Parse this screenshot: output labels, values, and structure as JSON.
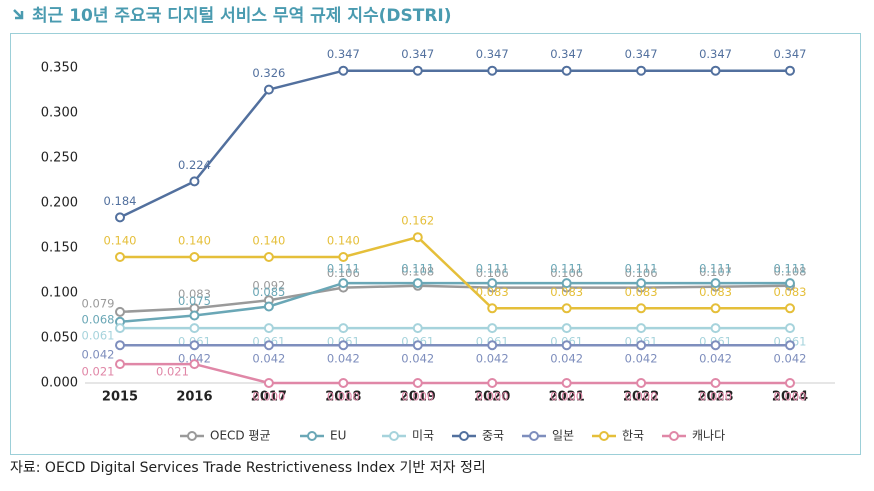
{
  "chart_data": {
    "type": "line",
    "title": "최근 10년 주요국 디지털 서비스 무역 규제 지수(DSTRI)",
    "source": "자료: OECD Digital Services Trade Restrictiveness Index 기반 저자 정리",
    "categories": [
      "2015",
      "2016",
      "2017",
      "2018",
      "2019",
      "2020",
      "2021",
      "2022",
      "2023",
      "2024"
    ],
    "ylim": [
      0,
      0.35
    ],
    "yticks": [
      {
        "value": 0,
        "label": "0.000"
      },
      {
        "value": 0.05,
        "label": "0.050"
      },
      {
        "value": 0.1,
        "label": "0.100"
      },
      {
        "value": 0.15,
        "label": "0.150"
      },
      {
        "value": 0.2,
        "label": "0.200"
      },
      {
        "value": 0.25,
        "label": "0.250"
      },
      {
        "value": 0.3,
        "label": "0.300"
      },
      {
        "value": 0.35,
        "label": "0.350"
      }
    ],
    "series": [
      {
        "name": "OECD 평균",
        "color": "#9a9a9a",
        "values": [
          0.079,
          0.083,
          0.092,
          0.106,
          0.108,
          0.106,
          0.106,
          0.106,
          0.107,
          0.108
        ],
        "value_labels": [
          "0.079",
          "0.083",
          "0.092",
          "0.106",
          "0.108",
          "0.106",
          "0.106",
          "0.106",
          "0.107",
          "0.108"
        ]
      },
      {
        "name": "EU",
        "color": "#6aa7b6",
        "values": [
          0.068,
          0.075,
          0.085,
          0.111,
          0.111,
          0.111,
          0.111,
          0.111,
          0.111,
          0.111
        ],
        "value_labels": [
          "0.068",
          "0.075",
          "0.085",
          "0.111",
          "0.111",
          "0.111",
          "0.111",
          "0.111",
          "0.111",
          "0.111"
        ]
      },
      {
        "name": "미국",
        "color": "#a6d3dc",
        "values": [
          0.061,
          0.061,
          0.061,
          0.061,
          0.061,
          0.061,
          0.061,
          0.061,
          0.061,
          0.061
        ],
        "value_labels": [
          "0.061",
          "0.061",
          "0.061",
          "0.061",
          "0.061",
          "0.061",
          "0.061",
          "0.061",
          "0.061",
          "0.061"
        ]
      },
      {
        "name": "중국",
        "color": "#52709e",
        "values": [
          0.184,
          0.224,
          0.326,
          0.347,
          0.347,
          0.347,
          0.347,
          0.347,
          0.347,
          0.347
        ],
        "value_labels": [
          "0.184",
          "0.224",
          "0.326",
          "0.347",
          "0.347",
          "0.347",
          "0.347",
          "0.347",
          "0.347",
          "0.347"
        ]
      },
      {
        "name": "일본",
        "color": "#7e8ebd",
        "values": [
          0.042,
          0.042,
          0.042,
          0.042,
          0.042,
          0.042,
          0.042,
          0.042,
          0.042,
          0.042
        ],
        "value_labels": [
          "0.042",
          "0.042",
          "0.042",
          "0.042",
          "0.042",
          "0.042",
          "0.042",
          "0.042",
          "0.042",
          "0.042"
        ]
      },
      {
        "name": "한국",
        "color": "#e5bf3a",
        "values": [
          0.14,
          0.14,
          0.14,
          0.14,
          0.162,
          0.083,
          0.083,
          0.083,
          0.083,
          0.083
        ],
        "value_labels": [
          "0.140",
          "0.140",
          "0.140",
          "0.140",
          "0.162",
          "0.083",
          "0.083",
          "0.083",
          "0.083",
          "0.083"
        ]
      },
      {
        "name": "캐나다",
        "color": "#e087a7",
        "values": [
          0.021,
          0.021,
          0,
          0,
          0,
          0,
          0,
          0,
          0,
          0
        ],
        "value_labels": [
          "0.021",
          "0.021",
          "0.000",
          "0.000",
          "0.000",
          "0.000",
          "0.000",
          "0.000",
          "0.000",
          "0.000"
        ]
      }
    ]
  }
}
